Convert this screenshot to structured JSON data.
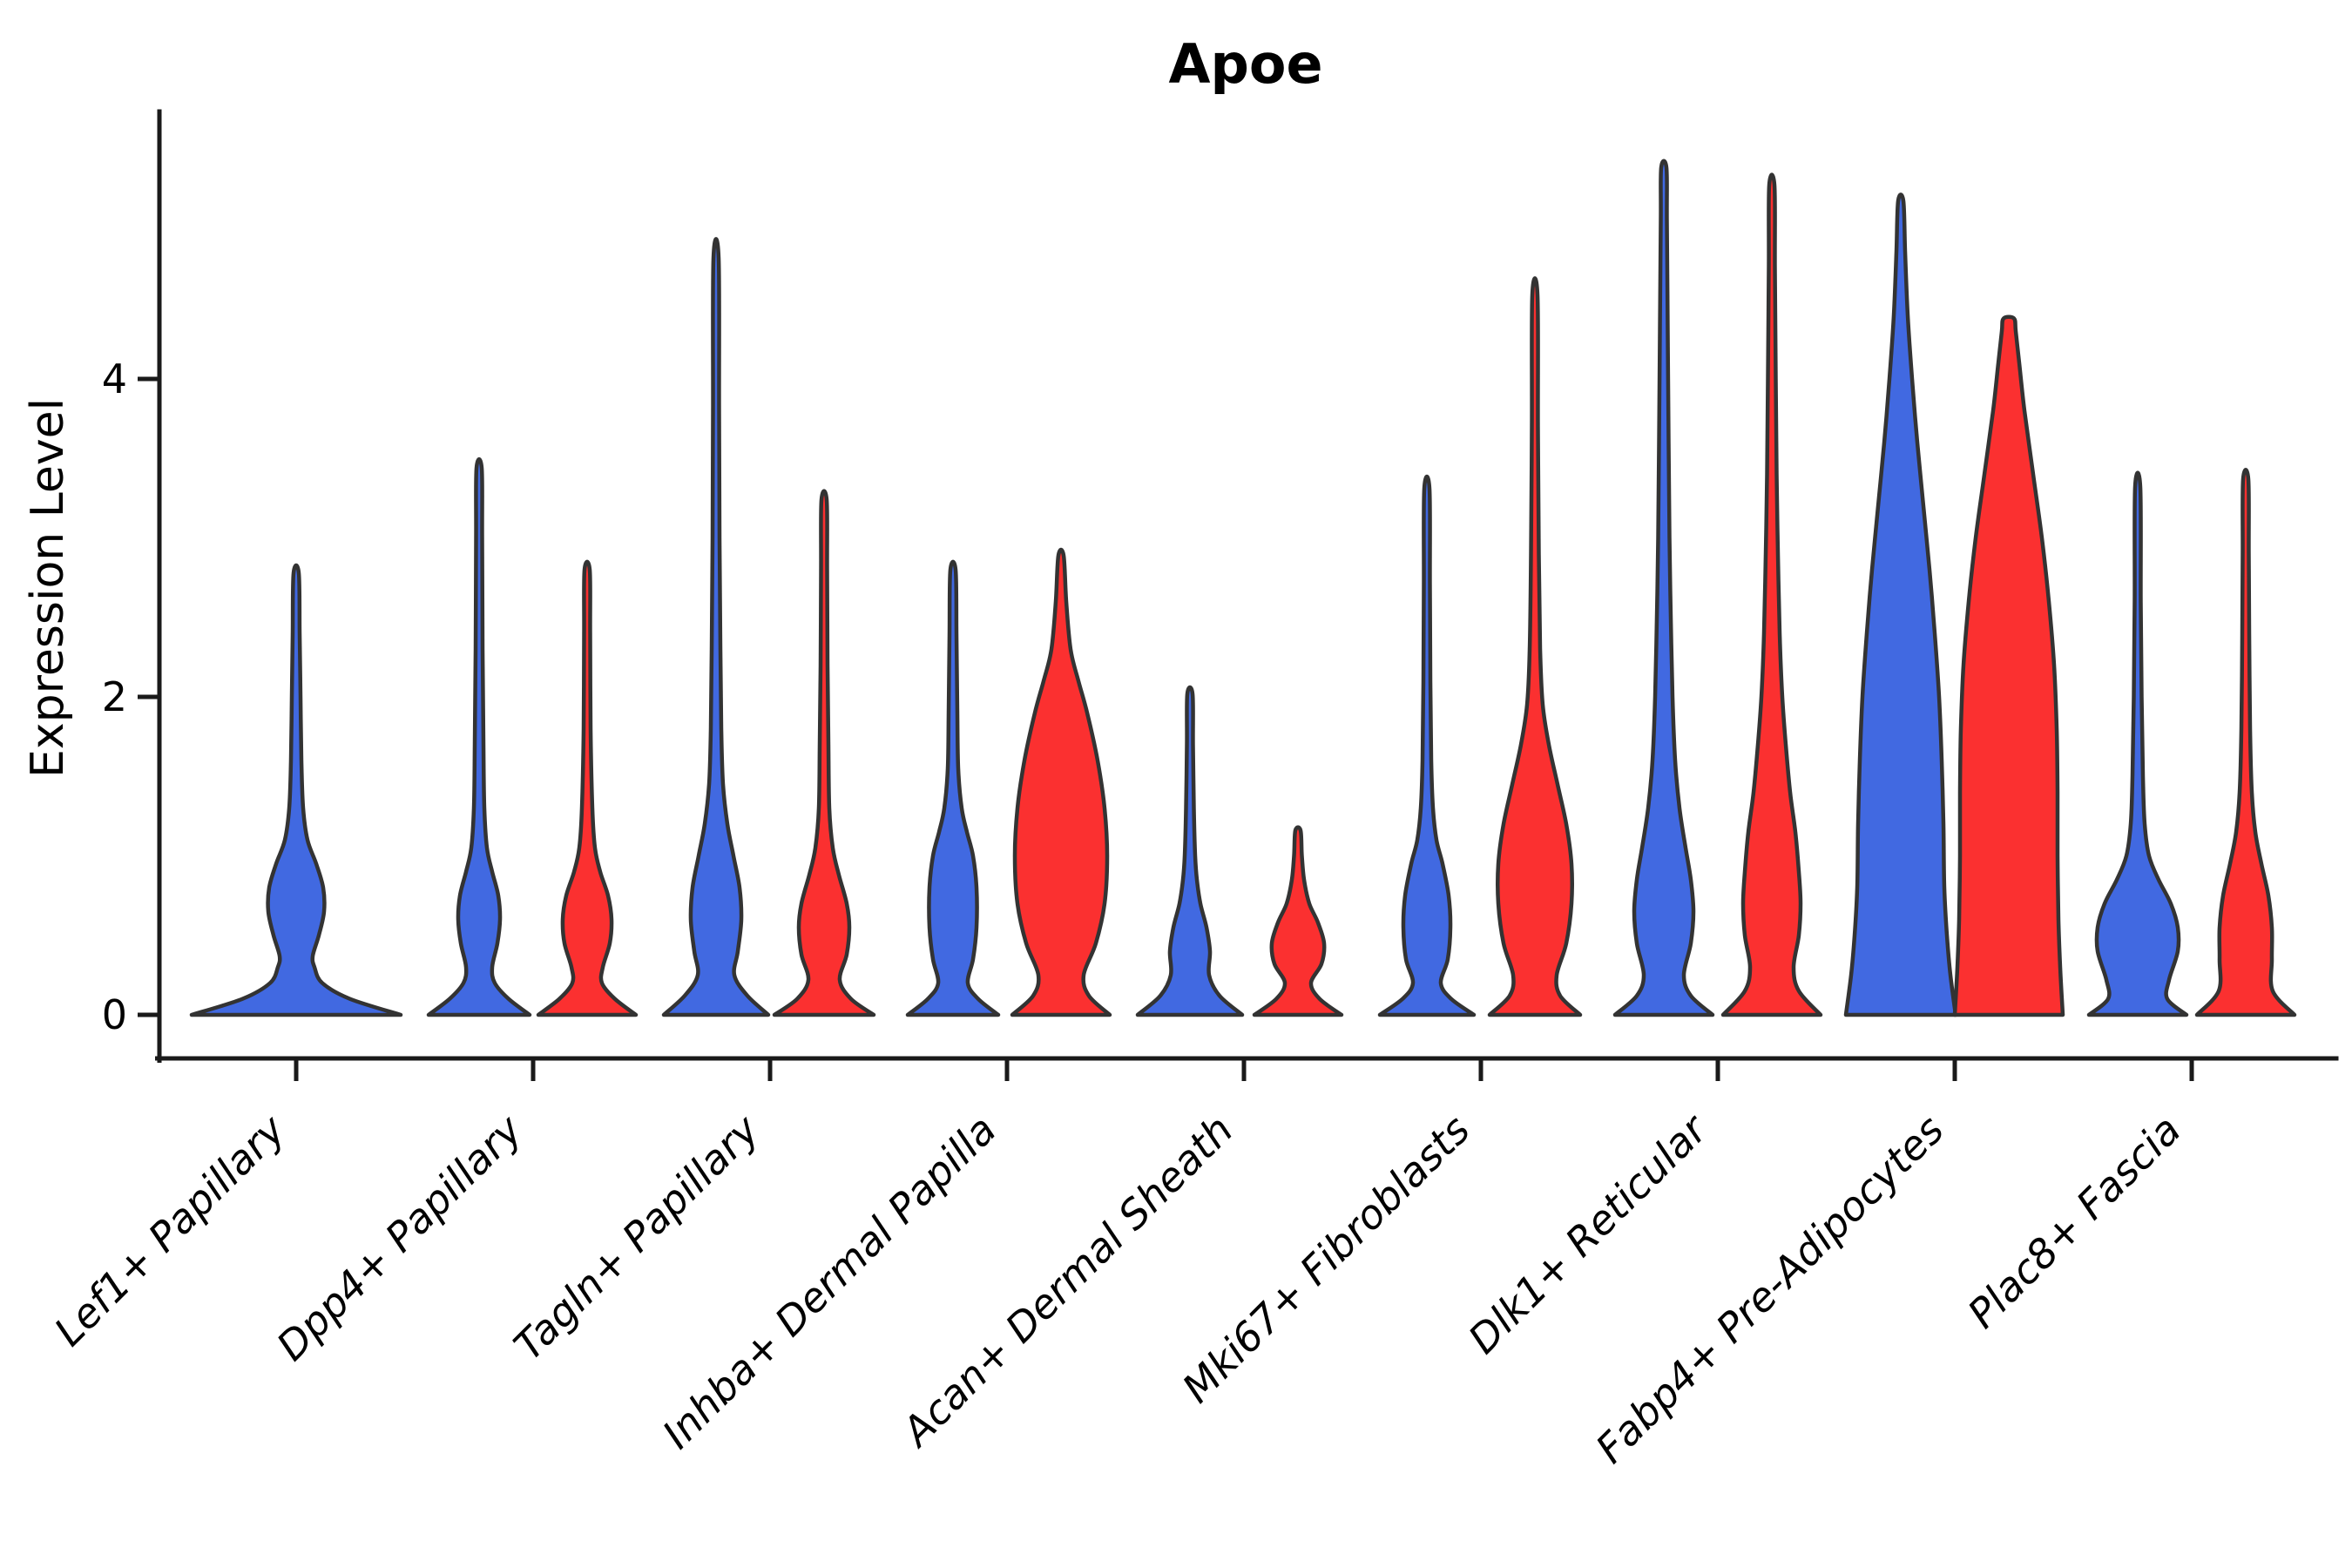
{
  "chart_data": {
    "type": "violin",
    "title": "Apoe",
    "ylabel": "Expression Level",
    "xlabel": "",
    "ylim": [
      -0.28,
      5.65
    ],
    "yticks": [
      0,
      2,
      4
    ],
    "ytick_labels": [
      "0",
      "2",
      "4"
    ],
    "grid": false,
    "legend_position": "none",
    "colors": {
      "blue": "#4169E1",
      "red": "#FB3030",
      "outline": "#333333",
      "background": "#FFFFFF"
    },
    "categories": [
      "Lef1+ Papillary",
      "Dpp4+ Papillary",
      "Tagln+ Papillary",
      "Inhba+ Dermal Papilla",
      "Acan+ Dermal Sheath",
      "Mki67+ Fibroblasts",
      "Dlk1+ Reticular",
      "Fabp4+ Pre-Adipocytes",
      "Plac8+ Fascia"
    ],
    "violins": [
      {
        "category": "Lef1+ Papillary",
        "cat_index": 0,
        "series": "blue",
        "solo": true,
        "max_expression": 2.78,
        "profile": [
          [
            0,
            120
          ],
          [
            0.1,
            62
          ],
          [
            0.2,
            30
          ],
          [
            0.3,
            21
          ],
          [
            0.37,
            19
          ],
          [
            0.5,
            26
          ],
          [
            0.65,
            32
          ],
          [
            0.8,
            31
          ],
          [
            0.95,
            23
          ],
          [
            1.1,
            13
          ],
          [
            1.3,
            8
          ],
          [
            1.6,
            6
          ],
          [
            2.0,
            5
          ],
          [
            2.4,
            4
          ],
          [
            2.78,
            3
          ]
        ]
      },
      {
        "category": "Dpp4+ Papillary",
        "cat_index": 1,
        "series": "blue",
        "solo": false,
        "max_expression": 3.44,
        "profile": [
          [
            0,
            58
          ],
          [
            0.1,
            34
          ],
          [
            0.2,
            18
          ],
          [
            0.3,
            15
          ],
          [
            0.45,
            21
          ],
          [
            0.6,
            24
          ],
          [
            0.75,
            22
          ],
          [
            0.9,
            15
          ],
          [
            1.05,
            9
          ],
          [
            1.3,
            6
          ],
          [
            1.7,
            5
          ],
          [
            2.3,
            4
          ],
          [
            3.0,
            3.5
          ],
          [
            3.44,
            3
          ]
        ]
      },
      {
        "category": "Dpp4+ Papillary",
        "cat_index": 1,
        "series": "red",
        "solo": false,
        "max_expression": 2.8,
        "profile": [
          [
            0,
            56
          ],
          [
            0.1,
            32
          ],
          [
            0.2,
            17
          ],
          [
            0.3,
            18
          ],
          [
            0.45,
            26
          ],
          [
            0.6,
            28
          ],
          [
            0.75,
            24
          ],
          [
            0.9,
            15
          ],
          [
            1.05,
            9
          ],
          [
            1.3,
            6
          ],
          [
            1.8,
            4
          ],
          [
            2.4,
            3.5
          ],
          [
            2.8,
            3
          ]
        ]
      },
      {
        "category": "Tagln+ Papillary",
        "cat_index": 2,
        "series": "blue",
        "solo": false,
        "max_expression": 4.76,
        "profile": [
          [
            0,
            60
          ],
          [
            0.12,
            36
          ],
          [
            0.25,
            21
          ],
          [
            0.4,
            25
          ],
          [
            0.6,
            29
          ],
          [
            0.8,
            27
          ],
          [
            1.0,
            20
          ],
          [
            1.2,
            13
          ],
          [
            1.45,
            8
          ],
          [
            1.8,
            6
          ],
          [
            2.3,
            5
          ],
          [
            3.0,
            4
          ],
          [
            3.8,
            3.5
          ],
          [
            4.76,
            3
          ]
        ]
      },
      {
        "category": "Tagln+ Papillary",
        "cat_index": 2,
        "series": "red",
        "solo": false,
        "max_expression": 3.24,
        "profile": [
          [
            0,
            57
          ],
          [
            0.1,
            31
          ],
          [
            0.22,
            18
          ],
          [
            0.38,
            26
          ],
          [
            0.55,
            29
          ],
          [
            0.7,
            26
          ],
          [
            0.88,
            17
          ],
          [
            1.05,
            10
          ],
          [
            1.3,
            6
          ],
          [
            1.7,
            5
          ],
          [
            2.2,
            4
          ],
          [
            2.8,
            3.5
          ],
          [
            3.24,
            3
          ]
        ]
      },
      {
        "category": "Inhba+ Dermal Papilla",
        "cat_index": 3,
        "series": "blue",
        "solo": false,
        "max_expression": 2.8,
        "profile": [
          [
            0,
            52
          ],
          [
            0.1,
            29
          ],
          [
            0.2,
            17
          ],
          [
            0.35,
            23
          ],
          [
            0.55,
            27
          ],
          [
            0.8,
            27
          ],
          [
            1.0,
            23
          ],
          [
            1.15,
            16
          ],
          [
            1.3,
            10
          ],
          [
            1.55,
            6
          ],
          [
            1.9,
            5
          ],
          [
            2.4,
            4
          ],
          [
            2.8,
            3
          ]
        ]
      },
      {
        "category": "Inhba+ Dermal Papilla",
        "cat_index": 3,
        "series": "red",
        "solo": false,
        "max_expression": 2.89,
        "profile": [
          [
            0,
            56
          ],
          [
            0.12,
            32
          ],
          [
            0.25,
            26
          ],
          [
            0.45,
            40
          ],
          [
            0.7,
            50
          ],
          [
            1.0,
            53
          ],
          [
            1.3,
            50
          ],
          [
            1.6,
            42
          ],
          [
            1.9,
            30
          ],
          [
            2.1,
            20
          ],
          [
            2.3,
            11
          ],
          [
            2.6,
            6
          ],
          [
            2.89,
            3
          ]
        ]
      },
      {
        "category": "Acan+ Dermal Sheath",
        "cat_index": 4,
        "series": "blue",
        "solo": false,
        "max_expression": 2.02,
        "profile": [
          [
            0,
            60
          ],
          [
            0.12,
            34
          ],
          [
            0.25,
            22
          ],
          [
            0.4,
            23
          ],
          [
            0.55,
            19
          ],
          [
            0.7,
            12
          ],
          [
            0.85,
            8
          ],
          [
            1.0,
            6
          ],
          [
            1.3,
            4.5
          ],
          [
            1.7,
            3.5
          ],
          [
            2.02,
            3
          ]
        ]
      },
      {
        "category": "Acan+ Dermal Sheath",
        "cat_index": 4,
        "series": "red",
        "solo": false,
        "max_expression": 1.16,
        "profile": [
          [
            0,
            50
          ],
          [
            0.1,
            25
          ],
          [
            0.2,
            15
          ],
          [
            0.32,
            27
          ],
          [
            0.45,
            30
          ],
          [
            0.58,
            23
          ],
          [
            0.7,
            13
          ],
          [
            0.85,
            7
          ],
          [
            1.0,
            4.5
          ],
          [
            1.16,
            3
          ]
        ]
      },
      {
        "category": "Mki67+ Fibroblasts",
        "cat_index": 5,
        "series": "blue",
        "solo": false,
        "max_expression": 3.31,
        "profile": [
          [
            0,
            54
          ],
          [
            0.1,
            28
          ],
          [
            0.2,
            16
          ],
          [
            0.35,
            24
          ],
          [
            0.55,
            27
          ],
          [
            0.75,
            25
          ],
          [
            0.95,
            18
          ],
          [
            1.1,
            11
          ],
          [
            1.3,
            7
          ],
          [
            1.6,
            5
          ],
          [
            2.1,
            4
          ],
          [
            2.7,
            3.5
          ],
          [
            3.31,
            3
          ]
        ]
      },
      {
        "category": "Mki67+ Fibroblasts",
        "cat_index": 5,
        "series": "red",
        "solo": false,
        "max_expression": 4.53,
        "profile": [
          [
            0,
            52
          ],
          [
            0.12,
            29
          ],
          [
            0.25,
            25
          ],
          [
            0.45,
            36
          ],
          [
            0.7,
            42
          ],
          [
            0.95,
            42
          ],
          [
            1.2,
            36
          ],
          [
            1.45,
            26
          ],
          [
            1.7,
            16
          ],
          [
            1.95,
            9
          ],
          [
            2.3,
            6
          ],
          [
            2.9,
            4.5
          ],
          [
            3.7,
            3.5
          ],
          [
            4.53,
            3
          ]
        ]
      },
      {
        "category": "Dlk1+ Reticular",
        "cat_index": 6,
        "series": "blue",
        "solo": false,
        "max_expression": 5.33,
        "profile": [
          [
            0,
            56
          ],
          [
            0.12,
            31
          ],
          [
            0.25,
            23
          ],
          [
            0.45,
            31
          ],
          [
            0.65,
            34
          ],
          [
            0.85,
            31
          ],
          [
            1.05,
            25
          ],
          [
            1.3,
            18
          ],
          [
            1.6,
            13
          ],
          [
            2.0,
            10
          ],
          [
            2.5,
            8
          ],
          [
            3.0,
            6.5
          ],
          [
            3.6,
            5.5
          ],
          [
            4.3,
            4.5
          ],
          [
            5.0,
            3.5
          ],
          [
            5.33,
            3
          ]
        ]
      },
      {
        "category": "Dlk1+ Reticular",
        "cat_index": 6,
        "series": "red",
        "solo": false,
        "max_expression": 5.22,
        "profile": [
          [
            0,
            56
          ],
          [
            0.15,
            31
          ],
          [
            0.3,
            25
          ],
          [
            0.5,
            31
          ],
          [
            0.7,
            33
          ],
          [
            0.9,
            31
          ],
          [
            1.15,
            27
          ],
          [
            1.4,
            21
          ],
          [
            1.7,
            16
          ],
          [
            2.0,
            12
          ],
          [
            2.4,
            9
          ],
          [
            2.9,
            7
          ],
          [
            3.4,
            5.5
          ],
          [
            4.0,
            4.5
          ],
          [
            4.7,
            3.5
          ],
          [
            5.22,
            3
          ]
        ]
      },
      {
        "category": "Fabp4+ Pre-Adipocytes",
        "cat_index": 7,
        "series": "blue",
        "solo": false,
        "max_expression": 5.12,
        "profile": [
          [
            0,
            63
          ],
          [
            0.25,
            57
          ],
          [
            0.5,
            53
          ],
          [
            0.8,
            50
          ],
          [
            1.2,
            49
          ],
          [
            1.6,
            47
          ],
          [
            2.0,
            44
          ],
          [
            2.4,
            39
          ],
          [
            2.8,
            33
          ],
          [
            3.2,
            26
          ],
          [
            3.6,
            19
          ],
          [
            4.0,
            13
          ],
          [
            4.4,
            8
          ],
          [
            4.8,
            5
          ],
          [
            5.12,
            3
          ]
        ]
      },
      {
        "category": "Fabp4+ Pre-Adipocytes",
        "cat_index": 7,
        "series": "red",
        "solo": false,
        "max_expression": 4.38,
        "profile": [
          [
            0,
            62
          ],
          [
            0.3,
            59
          ],
          [
            0.6,
            57
          ],
          [
            1.0,
            56
          ],
          [
            1.4,
            56
          ],
          [
            1.8,
            55
          ],
          [
            2.2,
            52
          ],
          [
            2.6,
            46
          ],
          [
            3.0,
            38
          ],
          [
            3.4,
            28
          ],
          [
            3.8,
            18
          ],
          [
            4.1,
            12
          ],
          [
            4.3,
            8
          ],
          [
            4.38,
            6
          ]
        ]
      },
      {
        "category": "Plac8+ Fascia",
        "cat_index": 8,
        "series": "blue",
        "solo": false,
        "max_expression": 3.32,
        "profile": [
          [
            0,
            56
          ],
          [
            0.1,
            34
          ],
          [
            0.22,
            36
          ],
          [
            0.4,
            46
          ],
          [
            0.55,
            46
          ],
          [
            0.7,
            38
          ],
          [
            0.85,
            24
          ],
          [
            1.0,
            13
          ],
          [
            1.2,
            8
          ],
          [
            1.5,
            6
          ],
          [
            2.0,
            4.5
          ],
          [
            2.6,
            3.5
          ],
          [
            3.32,
            3
          ]
        ]
      },
      {
        "category": "Plac8+ Fascia",
        "cat_index": 8,
        "series": "red",
        "solo": false,
        "max_expression": 3.37,
        "profile": [
          [
            0,
            56
          ],
          [
            0.15,
            31
          ],
          [
            0.35,
            30
          ],
          [
            0.55,
            30
          ],
          [
            0.75,
            26
          ],
          [
            0.95,
            18
          ],
          [
            1.15,
            11
          ],
          [
            1.4,
            7
          ],
          [
            1.8,
            5
          ],
          [
            2.4,
            4
          ],
          [
            2.9,
            3.5
          ],
          [
            3.37,
            3
          ]
        ]
      }
    ]
  }
}
